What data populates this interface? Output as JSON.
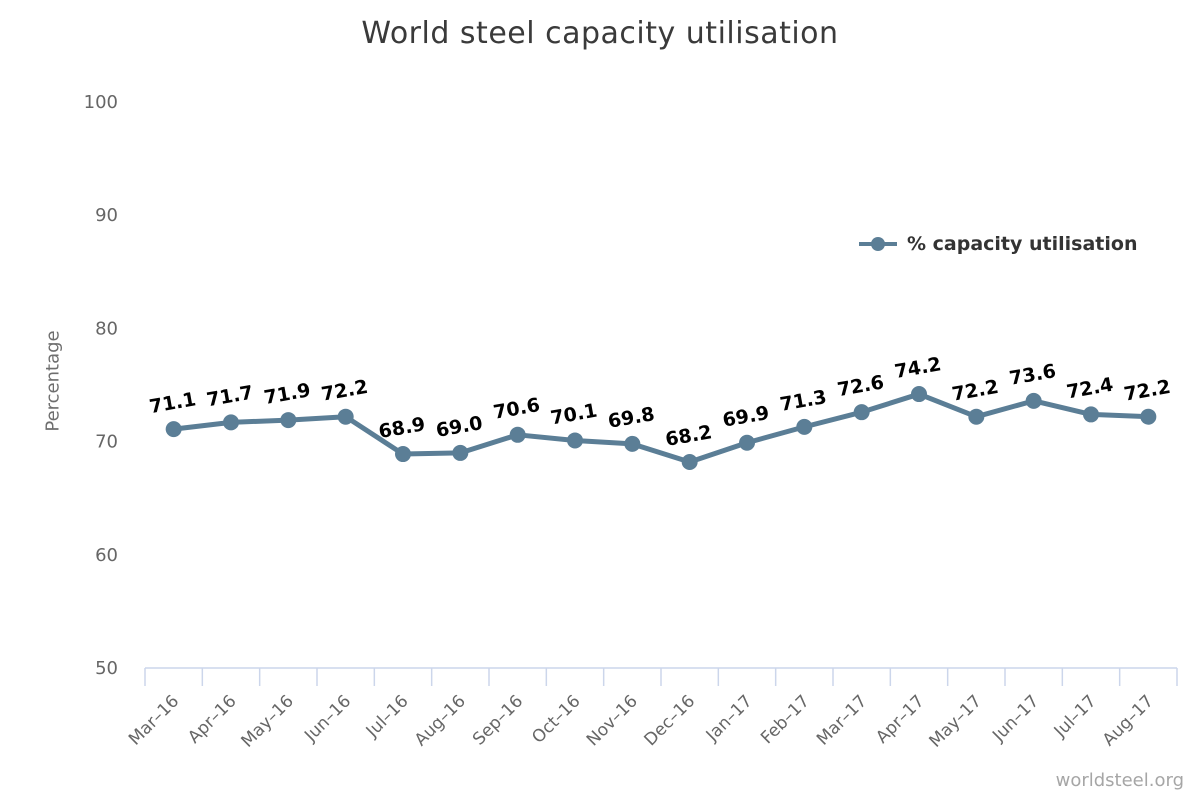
{
  "chart_data": {
    "type": "line",
    "title": "World steel capacity utilisation",
    "xlabel": "",
    "ylabel": "Percentage",
    "categories": [
      "Mar–16",
      "Apr–16",
      "May–16",
      "Jun–16",
      "Jul–16",
      "Aug–16",
      "Sep–16",
      "Oct–16",
      "Nov–16",
      "Dec–16",
      "Jan–17",
      "Feb–17",
      "Mar–17",
      "Apr–17",
      "May–17",
      "Jun–17",
      "Jul–17",
      "Aug–17"
    ],
    "series": [
      {
        "name": "% capacity utilisation",
        "values": [
          71.1,
          71.7,
          71.9,
          72.2,
          68.9,
          69.0,
          70.6,
          70.1,
          69.8,
          68.2,
          69.9,
          71.3,
          72.6,
          74.2,
          72.2,
          73.6,
          72.4,
          72.2
        ]
      }
    ],
    "ylim": [
      50,
      100
    ],
    "yticks": [
      50,
      60,
      70,
      80,
      90,
      100
    ],
    "grid": false,
    "data_labels": true,
    "legend_position": "right-middle",
    "marker": "circle"
  },
  "watermark": {
    "text": "worldsteel.org"
  },
  "colors": {
    "series": "#5b7e96",
    "data_label": "#000000",
    "axis": "#ccd6eb",
    "axis_text": "#666666",
    "title_text": "#3a3a3a",
    "legend_text": "#333333",
    "watermark_text": "#a6a6a6"
  }
}
